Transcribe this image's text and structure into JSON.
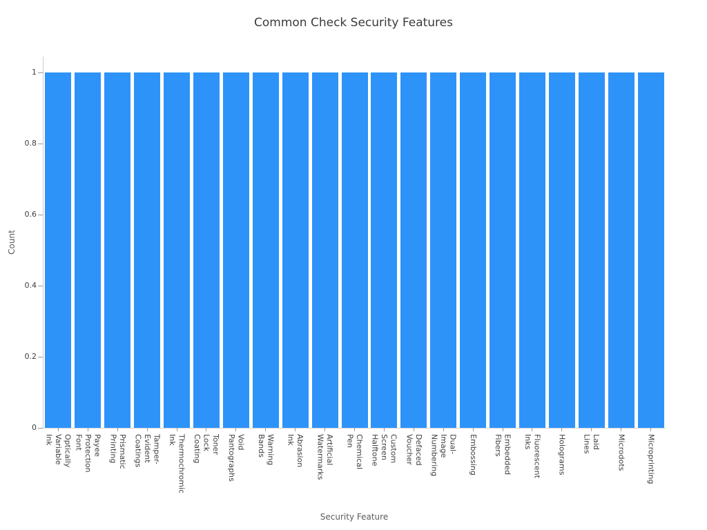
{
  "chart_data": {
    "type": "bar",
    "title": "Common Check Security Features",
    "xlabel": "Security Feature",
    "ylabel": "Count",
    "ylim": [
      0,
      1.045
    ],
    "yticks": [
      "0",
      "0.2",
      "0.4",
      "0.6",
      "0.8",
      "1"
    ],
    "ytick_values": [
      0,
      0.2,
      0.4,
      0.6,
      0.8,
      1
    ],
    "grid": false,
    "legend": "none",
    "bar_color": "#2e93f8",
    "categories": [
      "Optically\nVariable Ink",
      "Payee\nProtection Font",
      "Prismatic\nPrinting",
      "Tamper-Evident\nCoatings",
      "Thermochromic\nInk",
      "Toner Lock\nCoating",
      "Void\nPantographs",
      "Warning\nBands",
      "Abrasion\nInk",
      "Artificial\nWatermarks",
      "Chemical\nPen",
      "Custom Screen\nHalftone",
      "Defaced\nVoucher",
      "Dual-Image\nNumbering",
      "Embossing",
      "Embedded\nFibers",
      "Fluorescent\nInks",
      "Holograms",
      "Laid\nLines",
      "Microdots",
      "Microprinting"
    ],
    "values": [
      1,
      1,
      1,
      1,
      1,
      1,
      1,
      1,
      1,
      1,
      1,
      1,
      1,
      1,
      1,
      1,
      1,
      1,
      1,
      1,
      1
    ]
  }
}
